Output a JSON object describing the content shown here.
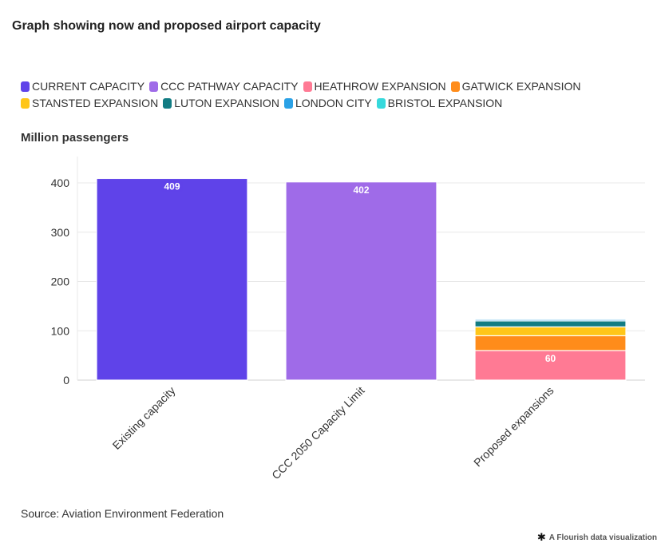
{
  "chart_data": {
    "type": "bar",
    "title": "Graph showing now and proposed airport capacity",
    "ylabel": "Million passengers",
    "xlabel": "",
    "ylim": [
      0,
      450
    ],
    "yticks": [
      0,
      100,
      200,
      300,
      400
    ],
    "grid": true,
    "legend_position": "top",
    "categories": [
      "Existing capacity",
      "CCC 2050 Capacity Limit",
      "Proposed expansions"
    ],
    "series": [
      {
        "name": "CURRENT CAPACITY",
        "color": "#5f43e9",
        "values": [
          409,
          0,
          0
        ],
        "labels": [
          "409",
          "",
          ""
        ]
      },
      {
        "name": "CCC PATHWAY CAPACITY",
        "color": "#9f6be8",
        "values": [
          0,
          402,
          0
        ],
        "labels": [
          "",
          "402",
          ""
        ]
      },
      {
        "name": "HEATHROW EXPANSION",
        "color": "#ff7a94",
        "values": [
          0,
          0,
          60
        ],
        "labels": [
          "",
          "",
          "60"
        ]
      },
      {
        "name": "GATWICK EXPANSION",
        "color": "#ff8c1a",
        "values": [
          0,
          0,
          30
        ],
        "labels": [
          "",
          "",
          ""
        ]
      },
      {
        "name": "STANSTED EXPANSION",
        "color": "#ffc619",
        "values": [
          0,
          0,
          18
        ],
        "labels": [
          "",
          "",
          ""
        ]
      },
      {
        "name": "LUTON EXPANSION",
        "color": "#127c83",
        "values": [
          0,
          0,
          12
        ],
        "labels": [
          "",
          "",
          ""
        ]
      },
      {
        "name": "LONDON CITY",
        "color": "#2aa1e6",
        "values": [
          0,
          0,
          3
        ],
        "labels": [
          "",
          "",
          ""
        ]
      },
      {
        "name": "BRISTOL EXPANSION",
        "color": "#36d9dc",
        "values": [
          0,
          0,
          2
        ],
        "labels": [
          "",
          "",
          ""
        ]
      }
    ]
  },
  "source": "Source: Aviation Environment Federation",
  "credit": "A Flourish data visualization",
  "credit_icon": "flourish-logo-icon"
}
